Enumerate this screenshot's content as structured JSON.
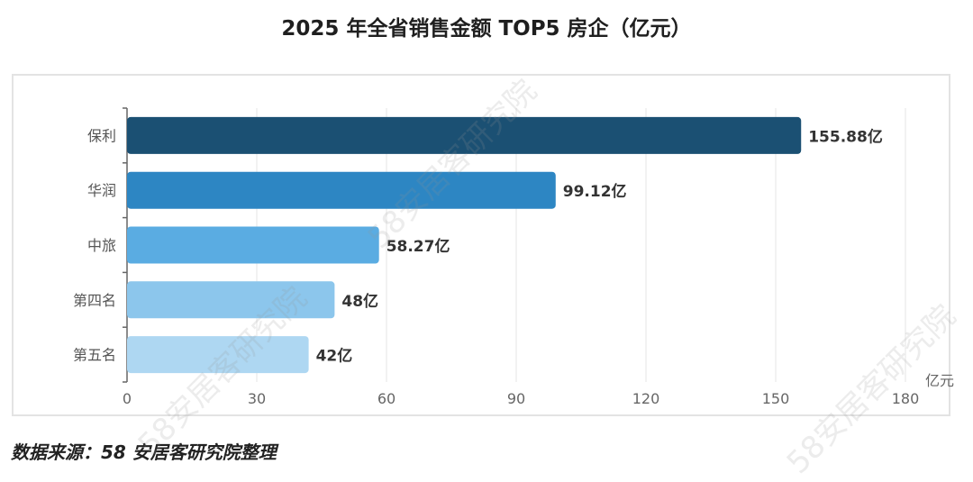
{
  "title": "2025 年全省销售金额 TOP5 房企（亿元）",
  "source": "数据来源：58 安居客研究院整理",
  "watermark": "58安居客研究院",
  "chart_data": {
    "type": "bar",
    "orientation": "horizontal",
    "categories": [
      "保利",
      "华润",
      "中旅",
      "第四名",
      "第五名"
    ],
    "values": [
      155.88,
      99.12,
      58.27,
      48,
      42
    ],
    "data_labels": [
      "155.88亿",
      "99.12亿",
      "58.27亿",
      "48亿",
      "42亿"
    ],
    "colors": [
      "#1b5073",
      "#2d86c3",
      "#5aace2",
      "#8cc6ec",
      "#aed7f2"
    ],
    "xlim": [
      0,
      180
    ],
    "xticks": [
      0,
      30,
      60,
      90,
      120,
      150,
      180
    ],
    "xlabel": "亿元",
    "grid": true
  }
}
